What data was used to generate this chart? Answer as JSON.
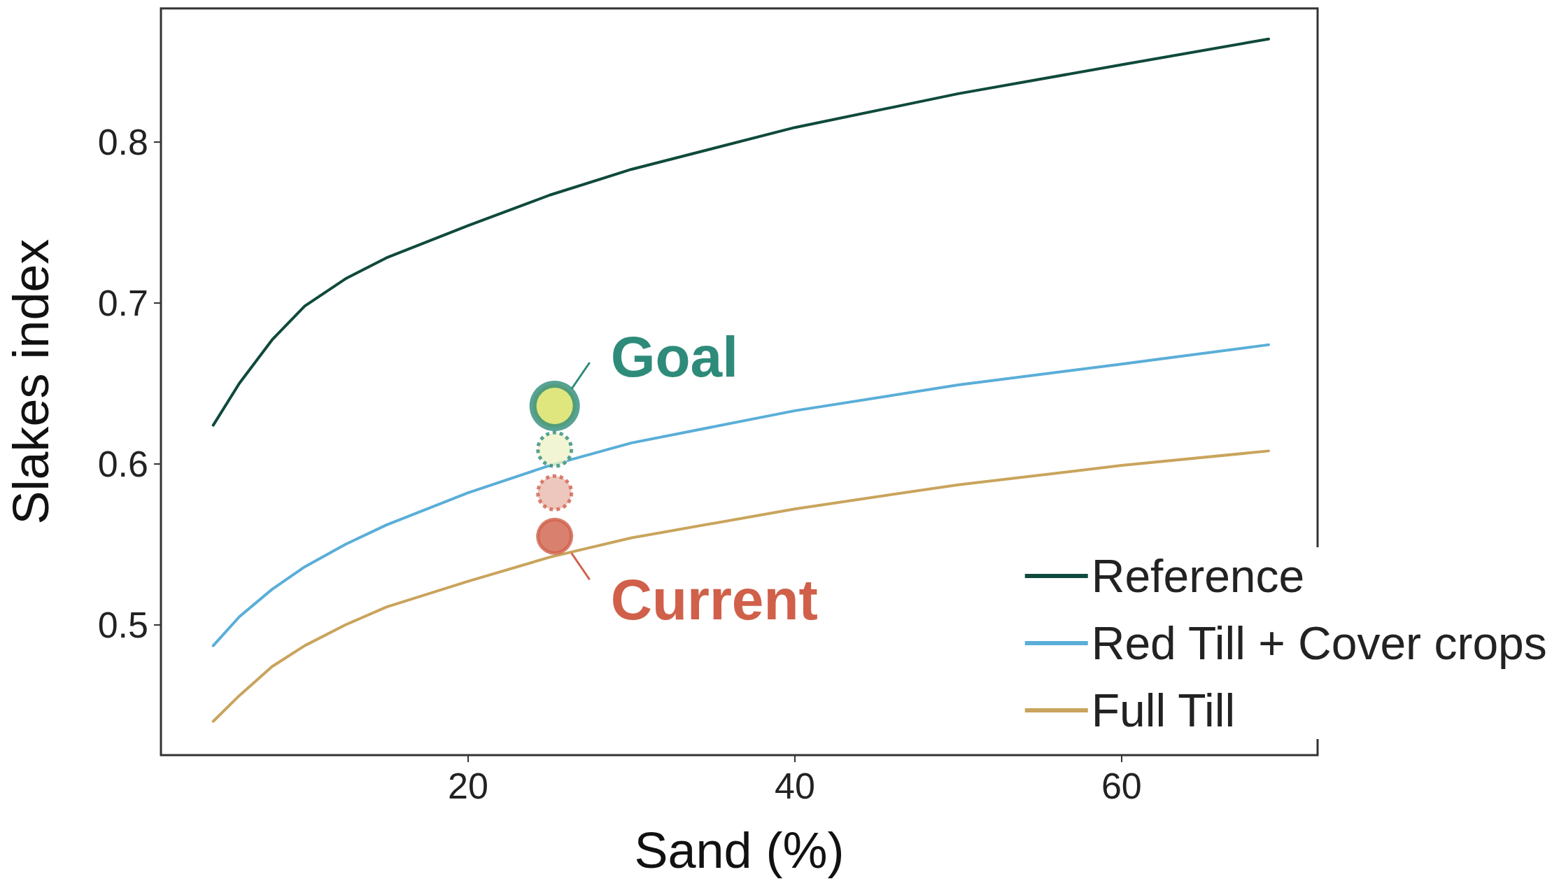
{
  "chart_data": {
    "type": "line",
    "xlabel": "Sand (%)",
    "ylabel": "Slakes index",
    "xlim": [
      1.2,
      72
    ],
    "xticks": [
      20,
      40,
      60
    ],
    "ylim": [
      0.419,
      0.883
    ],
    "yticks": [
      0.5,
      0.6,
      0.7,
      0.8
    ],
    "grid": false,
    "legend": "bottom right",
    "marker": "none",
    "line_style": "solid",
    "series": [
      {
        "name": "Reference",
        "color": "#0f4a3c",
        "x": [
          4.4,
          6,
          8,
          10,
          12.5,
          15,
          20,
          25,
          30,
          40,
          50,
          60,
          69
        ],
        "values": [
          0.624,
          0.65,
          0.677,
          0.698,
          0.715,
          0.728,
          0.748,
          0.767,
          0.783,
          0.809,
          0.83,
          0.848,
          0.864
        ]
      },
      {
        "name": "Red Till + Cover crops",
        "color": "#5aaed8",
        "x": [
          4.4,
          6,
          8,
          10,
          12.5,
          15,
          20,
          25,
          30,
          40,
          50,
          60,
          69
        ],
        "values": [
          0.487,
          0.505,
          0.522,
          0.536,
          0.55,
          0.562,
          0.582,
          0.599,
          0.613,
          0.633,
          0.649,
          0.662,
          0.674
        ]
      },
      {
        "name": "Full Till",
        "color": "#c9a45c",
        "x": [
          4.4,
          6,
          8,
          10,
          12.5,
          15,
          20,
          25,
          30,
          40,
          50,
          60,
          69
        ],
        "values": [
          0.44,
          0.456,
          0.474,
          0.487,
          0.5,
          0.511,
          0.527,
          0.542,
          0.554,
          0.572,
          0.587,
          0.599,
          0.608
        ]
      },
      {
        "type": "scatter",
        "color": "#d7e05e",
        "x": [
          25.3
        ],
        "values": [
          0.636
        ],
        "marker": "circle",
        "line_style": "solid"
      },
      {
        "type": "scatter",
        "color": "#eef2c8",
        "x": [
          25.3
        ],
        "values": [
          0.609
        ],
        "marker": "circle",
        "line_style": "dotted"
      },
      {
        "type": "scatter",
        "color": "#e8b8ae",
        "x": [
          25.3
        ],
        "values": [
          0.582
        ],
        "marker": "circle",
        "line_style": "dotted"
      },
      {
        "type": "scatter",
        "color": "#d0604a",
        "x": [
          25.3
        ],
        "values": [
          0.555
        ],
        "marker": "circle",
        "line_style": "solid"
      }
    ],
    "annotations": [
      {
        "text": "Goal",
        "x": 25.3,
        "y": 0.636
      },
      {
        "text": "Current",
        "x": 25.3,
        "y": 0.555
      }
    ]
  }
}
